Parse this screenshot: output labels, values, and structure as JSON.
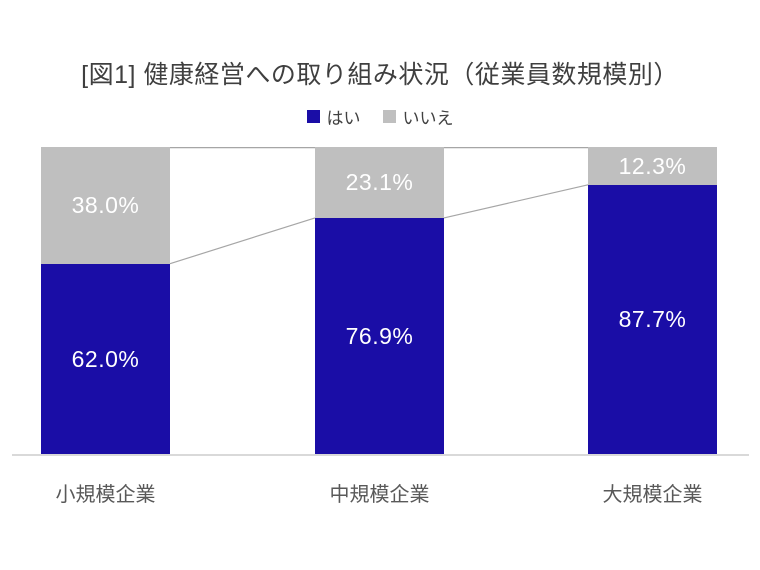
{
  "title": "[図1] 健康経営への取り組み状況（従業員数規模別）",
  "legend": {
    "items": [
      {
        "label": "はい",
        "color": "#1a0da6"
      },
      {
        "label": "いいえ",
        "color": "#bfbfbf"
      }
    ]
  },
  "chart_data": {
    "type": "bar",
    "subtype": "stacked-100-percent-column",
    "title": "[図1] 健康経営への取り組み状況（従業員数規模別）",
    "categories": [
      "小規模企業",
      "中規模企業",
      "大規模企業"
    ],
    "series": [
      {
        "name": "はい",
        "color": "#1a0da6",
        "values": [
          62.0,
          76.9,
          87.7
        ],
        "labels": [
          "62.0%",
          "76.9%",
          "87.7%"
        ]
      },
      {
        "name": "いいえ",
        "color": "#bfbfbf",
        "values": [
          38.0,
          23.1,
          12.3
        ],
        "labels": [
          "38.0%",
          "23.1%",
          "12.3%"
        ]
      }
    ],
    "ylim": [
      0,
      100
    ],
    "grid": false,
    "legend_position": "top",
    "connector_lines": true,
    "connector_color": "#a6a6a6",
    "axis_line_color": "#d9d9d9",
    "data_label_color": "#ffffff",
    "title_color": "#3f3f3f",
    "category_label_color": "#595959"
  }
}
